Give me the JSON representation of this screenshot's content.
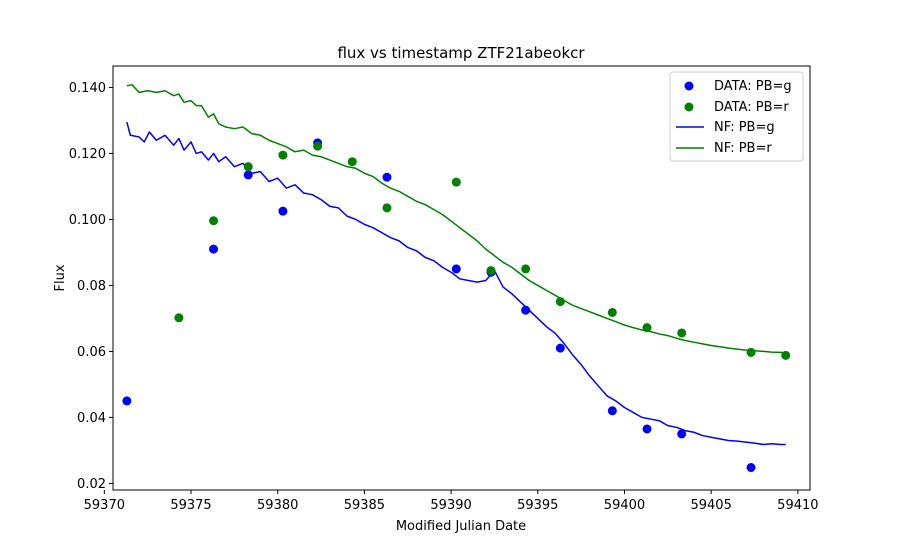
{
  "chart_data": {
    "type": "scatter",
    "title": "flux vs timestamp ZTF21abeokcr",
    "xlabel": "Modified Julian Date",
    "ylabel": "Flux",
    "xlim": [
      59370.5,
      59410.7
    ],
    "ylim": [
      0.018,
      0.1465
    ],
    "xticks": [
      59370,
      59375,
      59380,
      59385,
      59390,
      59395,
      59400,
      59405,
      59410
    ],
    "xtick_labels": [
      "59370",
      "59375",
      "59380",
      "59385",
      "59390",
      "59395",
      "59400",
      "59405",
      "59410"
    ],
    "yticks": [
      0.02,
      0.04,
      0.06,
      0.08,
      0.1,
      0.12,
      0.14
    ],
    "ytick_labels": [
      "0.02",
      "0.04",
      "0.06",
      "0.08",
      "0.100",
      "0.120",
      "0.140"
    ],
    "grid": false,
    "legend_position": "top-right",
    "series": [
      {
        "name": "DATA: PB=g",
        "kind": "scatter",
        "color": "#0000ff",
        "points": [
          [
            59371.3,
            0.045
          ],
          [
            59376.3,
            0.091
          ],
          [
            59378.3,
            0.1135
          ],
          [
            59380.3,
            0.1025
          ],
          [
            59382.3,
            0.1232
          ],
          [
            59386.3,
            0.1128
          ],
          [
            59390.3,
            0.085
          ],
          [
            59392.3,
            0.084
          ],
          [
            59394.3,
            0.0725
          ],
          [
            59396.3,
            0.061
          ],
          [
            59399.3,
            0.042
          ],
          [
            59401.3,
            0.0365
          ],
          [
            59403.3,
            0.035
          ],
          [
            59407.3,
            0.0248
          ]
        ]
      },
      {
        "name": "DATA: PB=r",
        "kind": "scatter",
        "color": "#008000",
        "points": [
          [
            59374.3,
            0.0702
          ],
          [
            59376.3,
            0.0996
          ],
          [
            59378.3,
            0.116
          ],
          [
            59380.3,
            0.1195
          ],
          [
            59382.3,
            0.1222
          ],
          [
            59384.3,
            0.1175
          ],
          [
            59386.3,
            0.1035
          ],
          [
            59390.3,
            0.1113
          ],
          [
            59392.3,
            0.0845
          ],
          [
            59394.3,
            0.085
          ],
          [
            59396.3,
            0.0751
          ],
          [
            59399.3,
            0.0718
          ],
          [
            59401.3,
            0.0672
          ],
          [
            59403.3,
            0.0656
          ],
          [
            59407.3,
            0.0597
          ],
          [
            59409.3,
            0.0588
          ]
        ]
      },
      {
        "name": "NF: PB=g",
        "kind": "line",
        "color": "#0000ff",
        "points": [
          [
            59371.3,
            0.1295
          ],
          [
            59371.5,
            0.1255
          ],
          [
            59372.0,
            0.125
          ],
          [
            59372.3,
            0.1235
          ],
          [
            59372.6,
            0.1265
          ],
          [
            59373.0,
            0.124
          ],
          [
            59373.5,
            0.1255
          ],
          [
            59374.0,
            0.1225
          ],
          [
            59374.3,
            0.1245
          ],
          [
            59374.6,
            0.121
          ],
          [
            59375.0,
            0.1235
          ],
          [
            59375.3,
            0.12
          ],
          [
            59375.6,
            0.1205
          ],
          [
            59376.0,
            0.118
          ],
          [
            59376.3,
            0.12
          ],
          [
            59376.6,
            0.1175
          ],
          [
            59377.0,
            0.119
          ],
          [
            59377.5,
            0.116
          ],
          [
            59378.0,
            0.117
          ],
          [
            59378.5,
            0.114
          ],
          [
            59379.0,
            0.1145
          ],
          [
            59379.5,
            0.1115
          ],
          [
            59380.0,
            0.1125
          ],
          [
            59380.5,
            0.1095
          ],
          [
            59381.0,
            0.1105
          ],
          [
            59381.5,
            0.108
          ],
          [
            59382.0,
            0.1075
          ],
          [
            59382.5,
            0.106
          ],
          [
            59383.0,
            0.104
          ],
          [
            59383.5,
            0.1035
          ],
          [
            59384.0,
            0.101
          ],
          [
            59384.5,
            0.1
          ],
          [
            59385.0,
            0.0985
          ],
          [
            59385.5,
            0.0975
          ],
          [
            59386.0,
            0.096
          ],
          [
            59386.5,
            0.0945
          ],
          [
            59387.0,
            0.0935
          ],
          [
            59387.5,
            0.0915
          ],
          [
            59388.0,
            0.0905
          ],
          [
            59388.5,
            0.0885
          ],
          [
            59389.0,
            0.0875
          ],
          [
            59389.5,
            0.0855
          ],
          [
            59390.0,
            0.084
          ],
          [
            59390.5,
            0.082
          ],
          [
            59391.0,
            0.0815
          ],
          [
            59391.5,
            0.081
          ],
          [
            59392.0,
            0.0815
          ],
          [
            59392.5,
            0.0845
          ],
          [
            59393.0,
            0.0795
          ],
          [
            59393.5,
            0.0775
          ],
          [
            59394.0,
            0.075
          ],
          [
            59394.5,
            0.0725
          ],
          [
            59395.0,
            0.07
          ],
          [
            59395.5,
            0.0675
          ],
          [
            59396.0,
            0.0655
          ],
          [
            59396.5,
            0.0625
          ],
          [
            59397.0,
            0.059
          ],
          [
            59397.5,
            0.056
          ],
          [
            59398.0,
            0.0525
          ],
          [
            59398.5,
            0.0495
          ],
          [
            59399.0,
            0.0465
          ],
          [
            59399.5,
            0.045
          ],
          [
            59400.0,
            0.043
          ],
          [
            59400.5,
            0.0415
          ],
          [
            59401.0,
            0.04
          ],
          [
            59401.5,
            0.0395
          ],
          [
            59402.0,
            0.039
          ],
          [
            59402.5,
            0.0375
          ],
          [
            59403.0,
            0.037
          ],
          [
            59403.5,
            0.036
          ],
          [
            59404.0,
            0.0355
          ],
          [
            59404.5,
            0.0345
          ],
          [
            59405.0,
            0.034
          ],
          [
            59405.5,
            0.0335
          ],
          [
            59406.0,
            0.033
          ],
          [
            59406.5,
            0.0328
          ],
          [
            59407.0,
            0.0325
          ],
          [
            59407.5,
            0.0322
          ],
          [
            59408.0,
            0.0318
          ],
          [
            59408.5,
            0.032
          ],
          [
            59409.0,
            0.0318
          ],
          [
            59409.3,
            0.0318
          ]
        ]
      },
      {
        "name": "NF: PB=r",
        "kind": "line",
        "color": "#008000",
        "points": [
          [
            59371.3,
            0.1405
          ],
          [
            59371.6,
            0.1408
          ],
          [
            59372.0,
            0.1385
          ],
          [
            59372.5,
            0.139
          ],
          [
            59373.0,
            0.1385
          ],
          [
            59373.5,
            0.139
          ],
          [
            59374.0,
            0.1375
          ],
          [
            59374.3,
            0.138
          ],
          [
            59374.6,
            0.1355
          ],
          [
            59375.0,
            0.136
          ],
          [
            59375.3,
            0.1345
          ],
          [
            59375.6,
            0.1345
          ],
          [
            59376.0,
            0.131
          ],
          [
            59376.3,
            0.132
          ],
          [
            59376.6,
            0.129
          ],
          [
            59377.0,
            0.128
          ],
          [
            59377.5,
            0.1275
          ],
          [
            59378.0,
            0.128
          ],
          [
            59378.5,
            0.126
          ],
          [
            59379.0,
            0.1255
          ],
          [
            59379.5,
            0.124
          ],
          [
            59380.0,
            0.123
          ],
          [
            59380.5,
            0.122
          ],
          [
            59381.0,
            0.1205
          ],
          [
            59381.5,
            0.121
          ],
          [
            59382.0,
            0.1195
          ],
          [
            59382.5,
            0.119
          ],
          [
            59383.0,
            0.118
          ],
          [
            59383.5,
            0.117
          ],
          [
            59384.0,
            0.116
          ],
          [
            59384.5,
            0.1155
          ],
          [
            59385.0,
            0.114
          ],
          [
            59385.5,
            0.113
          ],
          [
            59386.0,
            0.111
          ],
          [
            59386.5,
            0.1095
          ],
          [
            59387.0,
            0.1085
          ],
          [
            59387.5,
            0.107
          ],
          [
            59388.0,
            0.1055
          ],
          [
            59388.5,
            0.1045
          ],
          [
            59389.0,
            0.103
          ],
          [
            59389.5,
            0.1015
          ],
          [
            59390.0,
            0.0995
          ],
          [
            59390.5,
            0.0975
          ],
          [
            59391.0,
            0.0955
          ],
          [
            59391.5,
            0.0935
          ],
          [
            59392.0,
            0.091
          ],
          [
            59392.5,
            0.089
          ],
          [
            59393.0,
            0.087
          ],
          [
            59393.5,
            0.0855
          ],
          [
            59394.0,
            0.0835
          ],
          [
            59394.5,
            0.0815
          ],
          [
            59395.0,
            0.08
          ],
          [
            59395.5,
            0.0785
          ],
          [
            59396.0,
            0.077
          ],
          [
            59396.5,
            0.0755
          ],
          [
            59397.0,
            0.074
          ],
          [
            59397.5,
            0.073
          ],
          [
            59398.0,
            0.072
          ],
          [
            59398.5,
            0.071
          ],
          [
            59399.0,
            0.07
          ],
          [
            59399.5,
            0.069
          ],
          [
            59400.0,
            0.068
          ],
          [
            59400.5,
            0.0672
          ],
          [
            59401.0,
            0.0665
          ],
          [
            59401.5,
            0.066
          ],
          [
            59402.0,
            0.0653
          ],
          [
            59402.5,
            0.0648
          ],
          [
            59403.0,
            0.064
          ],
          [
            59403.5,
            0.0633
          ],
          [
            59404.0,
            0.0628
          ],
          [
            59404.5,
            0.0623
          ],
          [
            59405.0,
            0.0618
          ],
          [
            59405.5,
            0.0614
          ],
          [
            59406.0,
            0.061
          ],
          [
            59406.5,
            0.0607
          ],
          [
            59407.0,
            0.0604
          ],
          [
            59407.5,
            0.0602
          ],
          [
            59408.0,
            0.06
          ],
          [
            59408.5,
            0.0598
          ],
          [
            59409.0,
            0.0597
          ],
          [
            59409.3,
            0.0596
          ]
        ]
      }
    ]
  }
}
